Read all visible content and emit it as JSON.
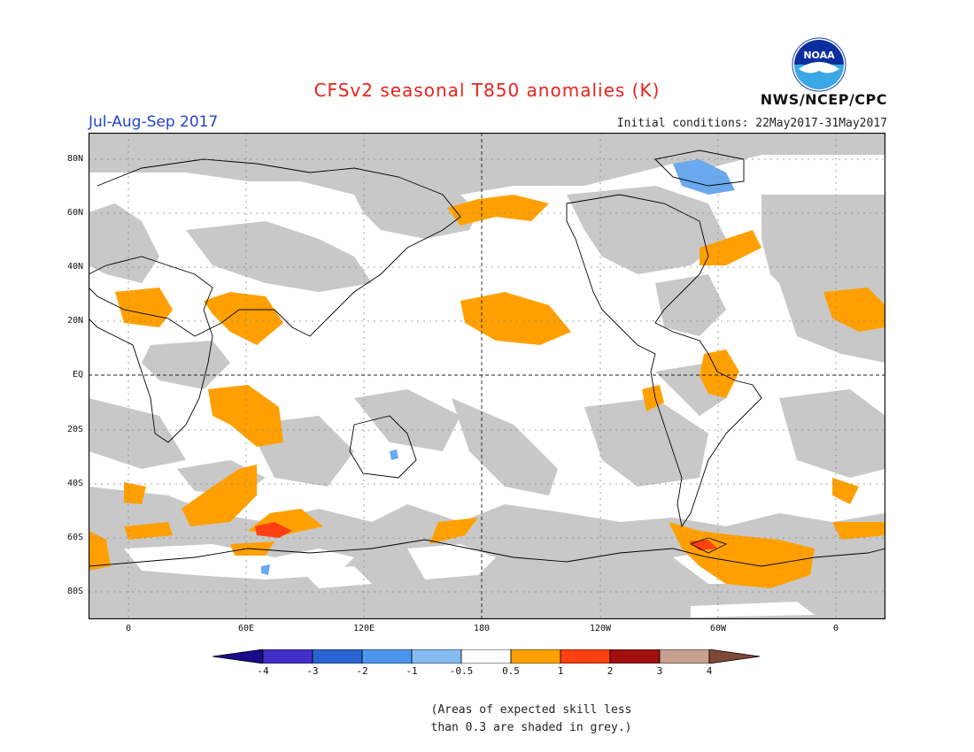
{
  "header": {
    "title": "CFSv2 seasonal T850 anomalies (K)",
    "title_color": "#e8221b",
    "season": "Jul-Aug-Sep 2017",
    "season_color": "#2244cc",
    "initial_conditions": "Initial conditions: 22May2017-31May2017",
    "agency": "NWS/NCEP/CPC",
    "logo_text": "NOAA"
  },
  "map": {
    "lat_labels": [
      "80N",
      "60N",
      "40N",
      "20N",
      "EQ",
      "20S",
      "40S",
      "60S",
      "80S"
    ],
    "lon_labels": [
      "0",
      "60E",
      "120E",
      "180",
      "120W",
      "60W",
      "0"
    ],
    "grey_color": "#c8c8c8",
    "icon": "world-map"
  },
  "colorbar": {
    "bins": [
      {
        "color": "#1a0a8c"
      },
      {
        "color": "#4030c8"
      },
      {
        "color": "#2a64d0"
      },
      {
        "color": "#4c96ee"
      },
      {
        "color": "#86bcf2"
      },
      {
        "color": "#ffffff"
      },
      {
        "color": "#ffa000"
      },
      {
        "color": "#ff4010"
      },
      {
        "color": "#a01010"
      },
      {
        "color": "#c8a090"
      },
      {
        "color": "#804838"
      }
    ],
    "tick_labels": [
      "-4",
      "-3",
      "-2",
      "-1",
      "-0.5",
      "0.5",
      "1",
      "2",
      "3",
      "4"
    ]
  },
  "footnote": {
    "line1": "(Areas of expected skill less",
    "line2": "than 0.3 are shaded in grey.)"
  }
}
